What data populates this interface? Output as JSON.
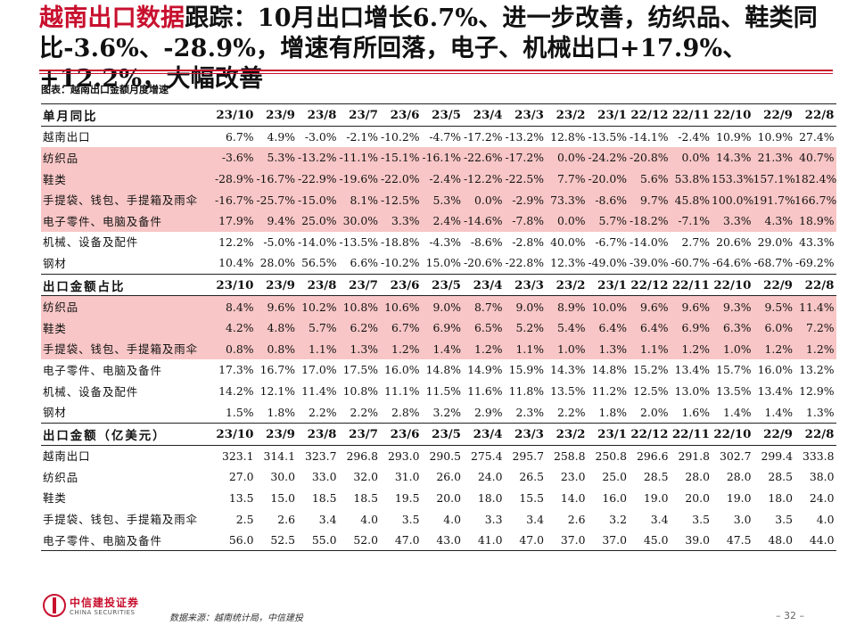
{
  "title": {
    "highlight": "越南出口数据",
    "rest": "跟踪：10月出口增长6.7%、进一步改善，纺织品、鞋类同比-3.6%、-28.9%，增速有所回落，电子、机械出口+17.9%、+12.2%，大幅改善"
  },
  "caption": "图表：越南出口金额月度增速",
  "colors": {
    "accent": "#c8102e",
    "highlight_row": "#f8c6c6"
  },
  "sections": [
    {
      "header": [
        "单月同比",
        "23/10",
        "23/9",
        "23/8",
        "23/7",
        "23/6",
        "23/5",
        "23/4",
        "23/3",
        "23/2",
        "23/1",
        "22/12",
        "22/11",
        "22/10",
        "22/9",
        "22/8"
      ],
      "rows": [
        {
          "highlight": false,
          "cells": [
            "越南出口",
            "6.7%",
            "4.9%",
            "-3.0%",
            "-2.1%",
            "-10.2%",
            "-4.7%",
            "-17.2%",
            "-13.2%",
            "12.8%",
            "-13.5%",
            "-14.1%",
            "-2.4%",
            "10.9%",
            "10.9%",
            "27.4%"
          ]
        },
        {
          "highlight": true,
          "cells": [
            "纺织品",
            "-3.6%",
            "5.3%",
            "-13.2%",
            "-11.1%",
            "-15.1%",
            "-16.1%",
            "-22.6%",
            "-17.2%",
            "0.0%",
            "-24.2%",
            "-20.8%",
            "0.0%",
            "14.3%",
            "21.3%",
            "40.7%"
          ]
        },
        {
          "highlight": true,
          "cells": [
            "鞋类",
            "-28.9%",
            "-16.7%",
            "-22.9%",
            "-19.6%",
            "-22.0%",
            "-2.4%",
            "-12.2%",
            "-22.5%",
            "7.7%",
            "-20.0%",
            "5.6%",
            "53.8%",
            "153.3%",
            "157.1%",
            "182.4%"
          ]
        },
        {
          "highlight": true,
          "cells": [
            "手提袋、钱包、手提箱及雨伞",
            "-16.7%",
            "-25.7%",
            "-15.0%",
            "8.1%",
            "-12.5%",
            "5.3%",
            "0.0%",
            "-2.9%",
            "73.3%",
            "-8.6%",
            "9.7%",
            "45.8%",
            "100.0%",
            "191.7%",
            "166.7%"
          ]
        },
        {
          "highlight": true,
          "cells": [
            "电子零件、电脑及备件",
            "17.9%",
            "9.4%",
            "25.0%",
            "30.0%",
            "3.3%",
            "2.4%",
            "-14.6%",
            "-7.8%",
            "0.0%",
            "5.7%",
            "-18.2%",
            "-7.1%",
            "3.3%",
            "4.3%",
            "18.9%"
          ]
        },
        {
          "highlight": false,
          "cells": [
            "机械、设备及配件",
            "12.2%",
            "-5.0%",
            "-14.0%",
            "-13.5%",
            "-18.8%",
            "-4.3%",
            "-8.6%",
            "-2.8%",
            "40.0%",
            "-6.7%",
            "-14.0%",
            "2.7%",
            "20.6%",
            "29.0%",
            "43.3%"
          ]
        },
        {
          "highlight": false,
          "cells": [
            "钢材",
            "10.4%",
            "28.0%",
            "56.5%",
            "6.6%",
            "-10.2%",
            "15.0%",
            "-20.6%",
            "-22.8%",
            "12.3%",
            "-49.0%",
            "-39.0%",
            "-60.7%",
            "-64.6%",
            "-68.7%",
            "-69.2%"
          ]
        }
      ]
    },
    {
      "header": [
        "出口金额占比",
        "23/10",
        "23/9",
        "23/8",
        "23/7",
        "23/6",
        "23/5",
        "23/4",
        "23/3",
        "23/2",
        "23/1",
        "22/12",
        "22/11",
        "22/10",
        "22/9",
        "22/8"
      ],
      "rows": [
        {
          "highlight": true,
          "cells": [
            "纺织品",
            "8.4%",
            "9.6%",
            "10.2%",
            "10.8%",
            "10.6%",
            "9.0%",
            "8.7%",
            "9.0%",
            "8.9%",
            "10.0%",
            "9.6%",
            "9.6%",
            "9.3%",
            "9.5%",
            "11.4%"
          ]
        },
        {
          "highlight": true,
          "cells": [
            "鞋类",
            "4.2%",
            "4.8%",
            "5.7%",
            "6.2%",
            "6.7%",
            "6.9%",
            "6.5%",
            "5.2%",
            "5.4%",
            "6.4%",
            "6.4%",
            "6.9%",
            "6.3%",
            "6.0%",
            "7.2%"
          ]
        },
        {
          "highlight": true,
          "cells": [
            "手提袋、钱包、手提箱及雨伞",
            "0.8%",
            "0.8%",
            "1.1%",
            "1.3%",
            "1.2%",
            "1.4%",
            "1.2%",
            "1.1%",
            "1.0%",
            "1.3%",
            "1.1%",
            "1.2%",
            "1.0%",
            "1.2%",
            "1.2%"
          ]
        },
        {
          "highlight": false,
          "cells": [
            "电子零件、电脑及备件",
            "17.3%",
            "16.7%",
            "17.0%",
            "17.5%",
            "16.0%",
            "14.8%",
            "14.9%",
            "15.9%",
            "14.3%",
            "14.8%",
            "15.2%",
            "13.4%",
            "15.7%",
            "16.0%",
            "13.2%"
          ]
        },
        {
          "highlight": false,
          "cells": [
            "机械、设备及配件",
            "14.2%",
            "12.1%",
            "11.4%",
            "10.8%",
            "11.1%",
            "11.5%",
            "11.6%",
            "11.8%",
            "13.5%",
            "11.2%",
            "12.5%",
            "13.0%",
            "13.5%",
            "13.4%",
            "12.9%"
          ]
        },
        {
          "highlight": false,
          "cells": [
            "钢材",
            "1.5%",
            "1.8%",
            "2.2%",
            "2.2%",
            "2.8%",
            "3.2%",
            "2.9%",
            "2.3%",
            "2.2%",
            "1.8%",
            "2.0%",
            "1.6%",
            "1.4%",
            "1.4%",
            "1.3%"
          ]
        }
      ]
    },
    {
      "header": [
        "出口金额（亿美元）",
        "23/10",
        "23/9",
        "23/8",
        "23/7",
        "23/6",
        "23/5",
        "23/4",
        "23/3",
        "23/2",
        "23/1",
        "22/12",
        "22/11",
        "22/10",
        "22/9",
        "22/8"
      ],
      "rows": [
        {
          "highlight": false,
          "cells": [
            "越南出口",
            "323.1",
            "314.1",
            "323.7",
            "296.8",
            "293.0",
            "290.5",
            "275.4",
            "295.7",
            "258.8",
            "250.8",
            "296.6",
            "291.8",
            "302.7",
            "299.4",
            "333.8"
          ]
        },
        {
          "highlight": false,
          "cells": [
            "纺织品",
            "27.0",
            "30.0",
            "33.0",
            "32.0",
            "31.0",
            "26.0",
            "24.0",
            "26.5",
            "23.0",
            "25.0",
            "28.5",
            "28.0",
            "28.0",
            "28.5",
            "38.0"
          ]
        },
        {
          "highlight": false,
          "cells": [
            "鞋类",
            "13.5",
            "15.0",
            "18.5",
            "18.5",
            "19.5",
            "20.0",
            "18.0",
            "15.5",
            "14.0",
            "16.0",
            "19.0",
            "20.0",
            "19.0",
            "18.0",
            "24.0"
          ]
        },
        {
          "highlight": false,
          "cells": [
            "手提袋、钱包、手提箱及雨伞",
            "2.5",
            "2.6",
            "3.4",
            "4.0",
            "3.5",
            "4.0",
            "3.3",
            "3.4",
            "2.6",
            "3.2",
            "3.4",
            "3.5",
            "3.0",
            "3.5",
            "4.0"
          ]
        },
        {
          "highlight": false,
          "cells": [
            "电子零件、电脑及备件",
            "56.0",
            "52.5",
            "55.0",
            "52.0",
            "47.0",
            "43.0",
            "41.0",
            "47.0",
            "37.0",
            "37.0",
            "45.0",
            "39.0",
            "47.5",
            "48.0",
            "44.0"
          ]
        }
      ]
    }
  ],
  "footer": {
    "logo_cn": "中信建投证券",
    "logo_en": "CHINA SECURITIES",
    "source": "数据来源：越南统计局，中信建投",
    "page": "– 32 –"
  }
}
